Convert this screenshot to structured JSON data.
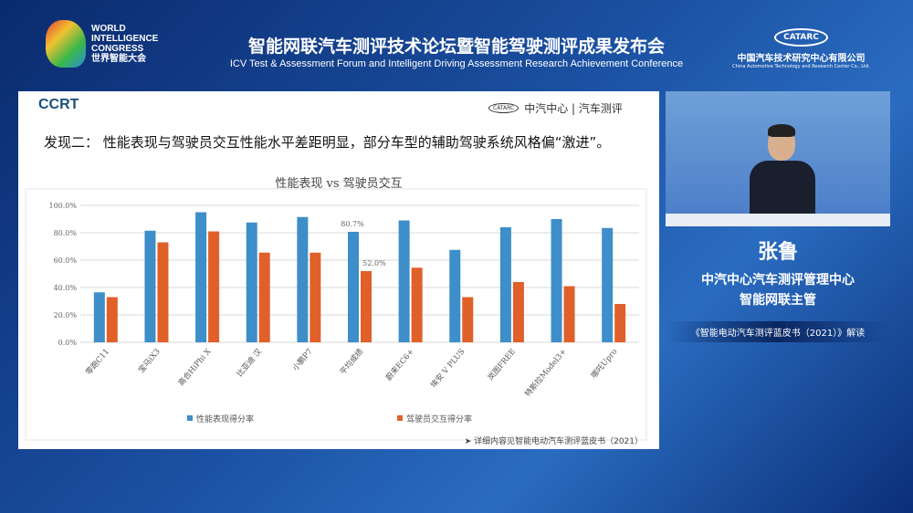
{
  "header": {
    "logo_lines": [
      "WORLD",
      "INTELLIGENCE",
      "CONGRESS",
      "世界智能大会"
    ],
    "title_cn": "智能网联汽车测评技术论坛暨智能驾驶测评成果发布会",
    "title_en": "ICV Test & Assessment Forum and Intelligent Driving Assessment Research Achievement Conference",
    "org_logo": "CATARC",
    "org_cn": "中国汽车技术研究中心有限公司",
    "org_en": "China Automotive Technology and Research Center Co., Ltd."
  },
  "slide": {
    "brand": "CCRT",
    "brand_right_logo": "CATARC",
    "brand_right": "中汽中心 | 汽车测评",
    "finding": "发现二： 性能表现与驾驶员交互性能水平差距明显，部分车型的辅助驾驶系统风格偏“激进”。",
    "note": "➤ 详细内容见智能电动汽车测评蓝皮书（2021）"
  },
  "chart_data": {
    "type": "bar",
    "title": "性能表现 vs 驾驶员交互",
    "categories": [
      "零跑C11",
      "宝马iX3",
      "高合HiPhi X",
      "比亚迪 汉",
      "小鹏P7",
      "平均成绩",
      "蔚来EC6+",
      "埃安 V PLUS",
      "岚图FREE",
      "特斯拉Model3+",
      "哪吒Upro"
    ],
    "series": [
      {
        "name": "性能表现得分率",
        "color": "#3d8ec9",
        "values": [
          36.5,
          81.5,
          95.0,
          87.5,
          91.5,
          80.7,
          89.0,
          67.5,
          84.0,
          90.0,
          83.5
        ]
      },
      {
        "name": "驾驶员交互得分率",
        "color": "#e0602a",
        "values": [
          33.0,
          73.0,
          81.0,
          65.5,
          65.5,
          52.0,
          54.5,
          33.0,
          44.0,
          41.0,
          28.0
        ]
      }
    ],
    "annotations": [
      "80.7%",
      "52.0%"
    ],
    "yticks": [
      "0.0%",
      "20.0%",
      "40.0%",
      "60.0%",
      "80.0%",
      "100.0%"
    ],
    "ylim": [
      0,
      100
    ],
    "legend": "bottom",
    "grid": true
  },
  "speaker": {
    "name": "张鲁",
    "org_line1": "中汽中心汽车测评管理中心",
    "org_line2": "智能网联主管",
    "topic": "《智能电动汽车测评蓝皮书（2021）》解读"
  }
}
